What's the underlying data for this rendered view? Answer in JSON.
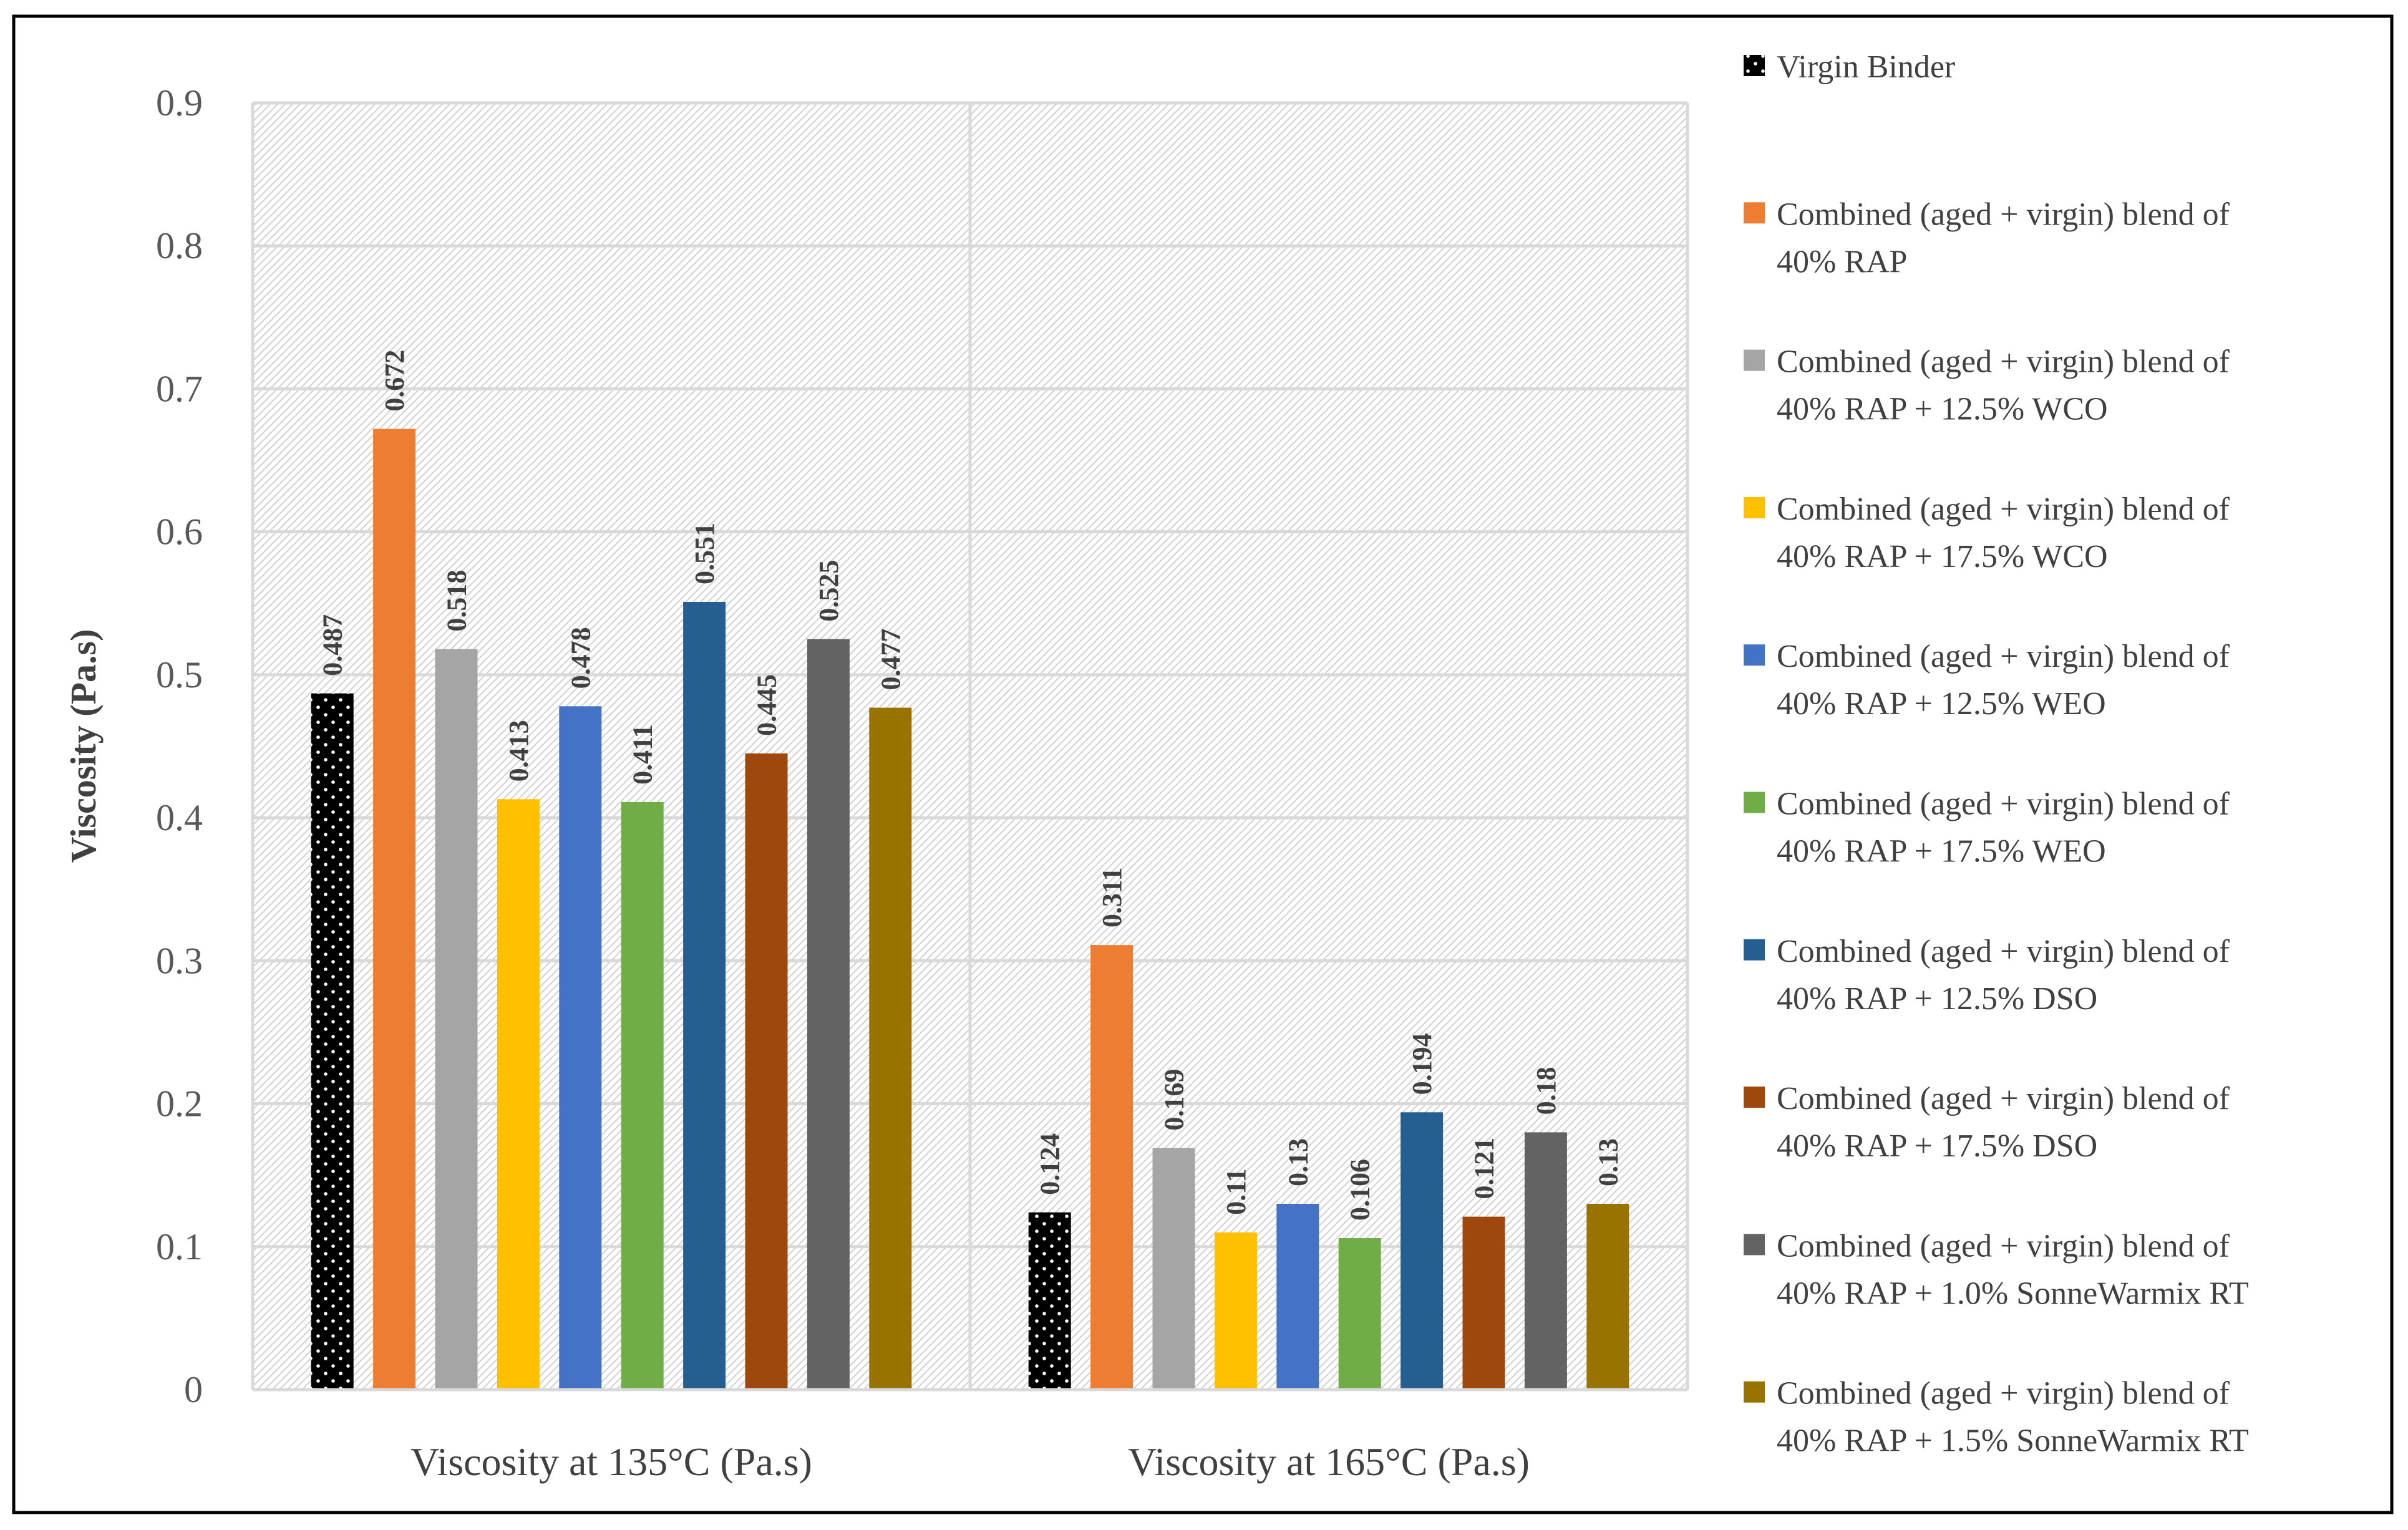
{
  "chart_data": {
    "type": "bar",
    "title": "",
    "xlabel": "",
    "ylabel": "Viscosity (Pa.s)",
    "ylim": [
      0,
      0.9
    ],
    "yticks": [
      "0",
      "0.1",
      "0.2",
      "0.3",
      "0.4",
      "0.5",
      "0.6",
      "0.7",
      "0.8",
      "0.9"
    ],
    "grid": true,
    "legend_position": "right",
    "categories": [
      "Viscosity at 135°C (Pa.s)",
      "Viscosity at 165°C (Pa.s)"
    ],
    "series": [
      {
        "name": "Virgin Binder",
        "lines": [
          "Virgin Binder"
        ],
        "color": "#000000",
        "pattern": "dots",
        "values": [
          0.487,
          0.124
        ],
        "labels": [
          "0.487",
          "0.124"
        ]
      },
      {
        "name": "Combined (aged + virgin) blend of 40% RAP",
        "lines": [
          "Combined (aged + virgin) blend of",
          "40% RAP"
        ],
        "color": "#ED7D31",
        "values": [
          0.672,
          0.311
        ],
        "labels": [
          "0.672",
          "0.311"
        ]
      },
      {
        "name": "Combined (aged + virgin) blend of 40% RAP + 12.5% WCO",
        "lines": [
          "Combined (aged + virgin) blend of",
          "40% RAP + 12.5% WCO"
        ],
        "color": "#A5A5A5",
        "values": [
          0.518,
          0.169
        ],
        "labels": [
          "0.518",
          "0.169"
        ]
      },
      {
        "name": "Combined (aged + virgin) blend of 40% RAP + 17.5% WCO",
        "lines": [
          "Combined (aged + virgin) blend of",
          "40% RAP + 17.5% WCO"
        ],
        "color": "#FFC000",
        "values": [
          0.413,
          0.11
        ],
        "labels": [
          "0.413",
          "0.11"
        ]
      },
      {
        "name": "Combined (aged + virgin) blend of 40% RAP + 12.5% WEO",
        "lines": [
          "Combined (aged + virgin) blend of",
          "40% RAP + 12.5% WEO"
        ],
        "color": "#4472C4",
        "values": [
          0.478,
          0.13
        ],
        "labels": [
          "0.478",
          "0.13"
        ]
      },
      {
        "name": "Combined (aged + virgin) blend of 40% RAP + 17.5% WEO",
        "lines": [
          "Combined (aged + virgin) blend of",
          "40% RAP + 17.5% WEO"
        ],
        "color": "#70AD47",
        "values": [
          0.411,
          0.106
        ],
        "labels": [
          "0.411",
          "0.106"
        ]
      },
      {
        "name": "Combined (aged + virgin) blend of 40% RAP + 12.5% DSO",
        "lines": [
          "Combined (aged + virgin) blend of",
          "40% RAP + 12.5% DSO"
        ],
        "color": "#255E91",
        "values": [
          0.551,
          0.194
        ],
        "labels": [
          "0.551",
          "0.194"
        ]
      },
      {
        "name": "Combined (aged + virgin) blend of 40% RAP + 17.5% DSO",
        "lines": [
          "Combined (aged + virgin) blend of",
          "40% RAP + 17.5% DSO"
        ],
        "color": "#9E480E",
        "values": [
          0.445,
          0.121
        ],
        "labels": [
          "0.445",
          "0.121"
        ]
      },
      {
        "name": "Combined (aged + virgin) blend of 40% RAP + 1.0% SonneWarmix RT",
        "lines": [
          "Combined (aged + virgin) blend of",
          "40% RAP + 1.0% SonneWarmix RT"
        ],
        "color": "#636363",
        "values": [
          0.525,
          0.18
        ],
        "labels": [
          "0.525",
          "0.18"
        ]
      },
      {
        "name": "Combined (aged + virgin) blend of 40% RAP + 1.5% SonneWarmix RT",
        "lines": [
          "Combined (aged + virgin) blend of",
          "40% RAP + 1.5% SonneWarmix RT"
        ],
        "color": "#997300",
        "values": [
          0.477,
          0.13
        ],
        "labels": [
          "0.477",
          "0.13"
        ]
      }
    ]
  }
}
